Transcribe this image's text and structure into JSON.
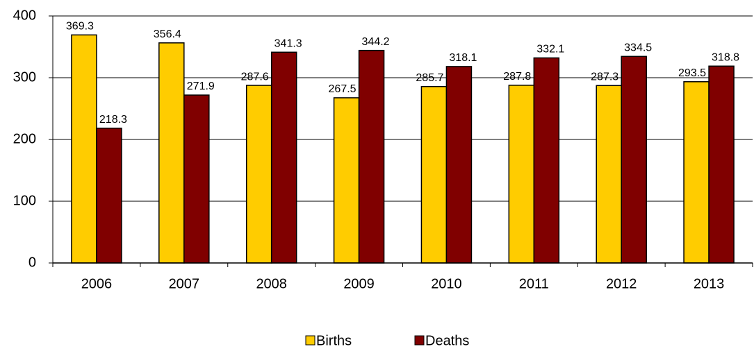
{
  "chart_data": {
    "type": "bar",
    "categories": [
      "2006",
      "2007",
      "2008",
      "2009",
      "2010",
      "2011",
      "2012",
      "2013"
    ],
    "series": [
      {
        "name": "Births",
        "color": "#ffcc00",
        "values": [
          369.3,
          356.4,
          287.6,
          267.5,
          285.7,
          287.8,
          287.3,
          293.5
        ]
      },
      {
        "name": "Deaths",
        "color": "#800000",
        "values": [
          218.3,
          271.9,
          341.3,
          344.2,
          318.1,
          332.1,
          334.5,
          318.8
        ]
      }
    ],
    "ylim": [
      0,
      400
    ],
    "yticks": [
      0,
      100,
      200,
      300,
      400
    ],
    "grid": true,
    "legend": "bottom"
  }
}
